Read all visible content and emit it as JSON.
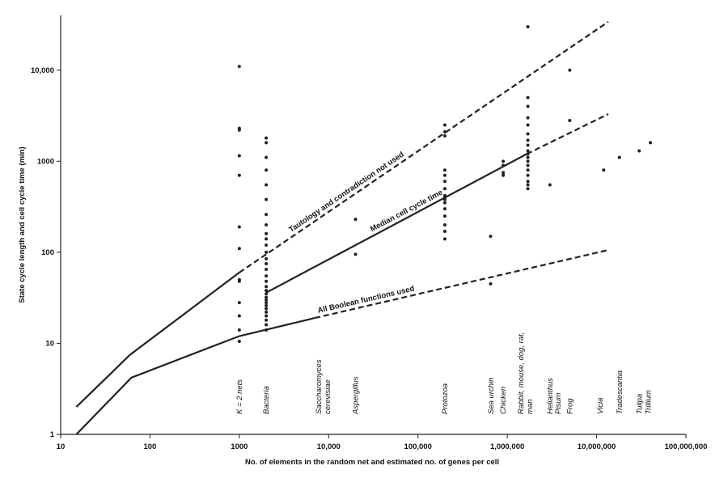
{
  "chart_data": {
    "type": "scatter",
    "x_label": "No. of elements in the random net and estimated no. of genes per cell",
    "y_label": "State cycle length and cell cycle time (min)",
    "log_x": true,
    "log_y": true,
    "xlim": [
      10,
      100000000
    ],
    "ylim": [
      1,
      40000
    ],
    "xticks": [
      10,
      100,
      1000,
      {
        "value": 10000,
        "label": "10,000"
      },
      {
        "value": 100000,
        "label": "100,000"
      },
      {
        "value": 1000000,
        "label": "1,000,000"
      },
      {
        "value": 10000000,
        "label": "10,000,000"
      },
      {
        "value": 100000000,
        "label": "100,000,000"
      }
    ],
    "yticks": [
      1,
      10,
      100,
      1000,
      {
        "value": 10000,
        "label": "10,000"
      }
    ],
    "color": "#222222",
    "series": [
      {
        "type": "line",
        "dashed": false,
        "x": [
          15,
          60,
          1000
        ],
        "values": [
          2,
          7.5,
          60
        ]
      },
      {
        "type": "line",
        "dashed": true,
        "name": "Tautology and contradiction not used",
        "x": [
          1000,
          13500000
        ],
        "values": [
          60,
          34000
        ]
      },
      {
        "type": "line",
        "dashed": false,
        "name": "Median cell cycle time",
        "x": [
          2000,
          1650000
        ],
        "values": [
          36,
          1200
        ]
      },
      {
        "type": "line",
        "dashed": true,
        "x": [
          1650000,
          13500000
        ],
        "values": [
          1200,
          3300
        ]
      },
      {
        "type": "line",
        "dashed": false,
        "x": [
          15,
          62,
          1000,
          7000
        ],
        "values": [
          1,
          4.2,
          12,
          19
        ]
      },
      {
        "type": "line",
        "dashed": true,
        "name": "All Boolean functions used",
        "x": [
          7000,
          13000000
        ],
        "values": [
          19,
          105
        ]
      },
      {
        "type": "scatter",
        "x": [
          1000,
          1000,
          1000,
          1000,
          1000,
          1000,
          1000,
          1000,
          1000,
          1000,
          1000,
          1000,
          1000,
          2000,
          2000,
          2000,
          2000,
          2000,
          2000,
          2000,
          2000,
          2000,
          2000,
          2000,
          2000,
          2000,
          2000,
          2000,
          2000,
          2000,
          2000,
          2000,
          2000,
          2000,
          2000,
          2000,
          2000,
          2000,
          2000,
          2000,
          2000,
          2000,
          2000,
          20000,
          20000,
          200000,
          200000,
          200000,
          200000,
          200000,
          200000,
          200000,
          200000,
          200000,
          200000,
          200000,
          200000,
          200000,
          200000,
          200000,
          200000,
          650000,
          650000,
          900000,
          900000,
          900000,
          900000,
          1700000,
          1700000,
          1700000,
          1700000,
          1700000,
          1700000,
          1700000,
          1700000,
          1700000,
          1700000,
          1700000,
          1700000,
          1700000,
          1700000,
          1700000,
          1700000,
          1700000,
          1700000,
          3000000,
          5000000,
          5000000,
          12000000,
          18000000,
          30000000,
          40000000
        ],
        "values": [
          11000,
          2300,
          2200,
          1150,
          700,
          190,
          110,
          50,
          48,
          28,
          20,
          14,
          10.5,
          1800,
          1600,
          1100,
          800,
          550,
          380,
          260,
          200,
          160,
          140,
          120,
          100,
          85,
          75,
          65,
          55,
          48,
          42,
          38,
          35,
          32,
          30,
          28,
          26,
          24,
          22,
          20,
          18,
          16,
          14,
          230,
          95,
          2500,
          2100,
          1900,
          800,
          700,
          600,
          500,
          420,
          400,
          380,
          350,
          300,
          250,
          200,
          170,
          140,
          150,
          45,
          1000,
          900,
          750,
          700,
          30000,
          5000,
          4000,
          3000,
          2500,
          2000,
          1700,
          1500,
          1300,
          1200,
          1100,
          1000,
          900,
          800,
          700,
          600,
          550,
          500,
          550,
          10000,
          2800,
          800,
          1100,
          1300,
          1600
        ]
      }
    ],
    "group_labels": [
      {
        "x": 1000,
        "lines": [
          "K = 2 nets"
        ]
      },
      {
        "x": 2000,
        "lines": [
          "Bacteria"
        ]
      },
      {
        "x": 8700,
        "lines": [
          "Saccharomyces",
          "cerevisiae"
        ]
      },
      {
        "x": 20000,
        "lines": [
          "Aspergillus"
        ]
      },
      {
        "x": 200000,
        "lines": [
          "Protozoa"
        ]
      },
      {
        "x": 660000,
        "lines": [
          "Sea urchin"
        ]
      },
      {
        "x": 900000,
        "lines": [
          "Chicken"
        ]
      },
      {
        "x": 1600000,
        "lines": [
          "Rabbit, mouse, dog, rat,",
          "man"
        ]
      },
      {
        "x": 3000000,
        "lines": [
          "Helianthus"
        ]
      },
      {
        "x": 3700000,
        "lines": [
          "Pisum"
        ]
      },
      {
        "x": 5000000,
        "lines": [
          "Frog"
        ]
      },
      {
        "x": 11000000,
        "lines": [
          "Vicia"
        ]
      },
      {
        "x": 18000000,
        "lines": [
          "Tradescantia"
        ]
      },
      {
        "x": 30000000,
        "lines": [
          "Tulipa"
        ]
      },
      {
        "x": 38000000,
        "lines": [
          "Trillium"
        ]
      }
    ]
  }
}
